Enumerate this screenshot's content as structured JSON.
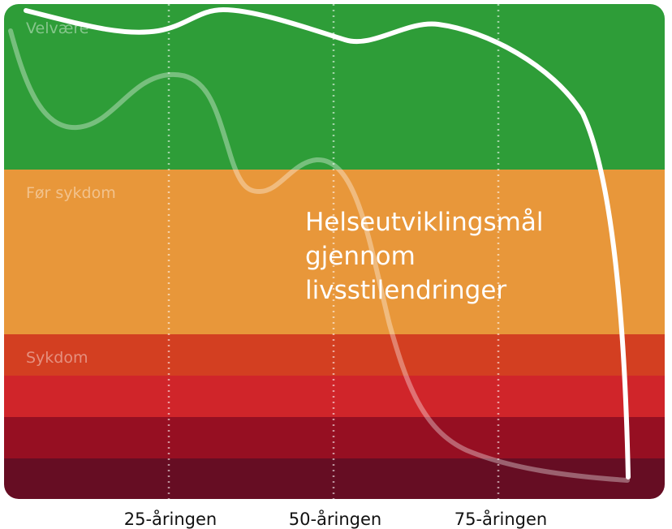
{
  "zones": {
    "wellbeing": {
      "label": "Velvære",
      "color": "#2e9d38"
    },
    "pre_illness": {
      "label": "Før sykdom",
      "color": "#e8973a"
    },
    "illness": {
      "label": "Sykdom",
      "bands": [
        "#d33f21",
        "#d0252a",
        "#960f22",
        "#660d23"
      ]
    }
  },
  "x_axis": {
    "ticks": [
      "25-åringen",
      "50-åringen",
      "75-åringen"
    ]
  },
  "title_lines": [
    "Helseutviklingsmål",
    "gjennom",
    "livsstilendringer"
  ],
  "curves": [
    {
      "name": "target-trajectory",
      "color": "#ffffff",
      "opacity": 1
    },
    {
      "name": "typical-trajectory",
      "color": "#ffffff",
      "opacity": 0.35
    }
  ]
}
